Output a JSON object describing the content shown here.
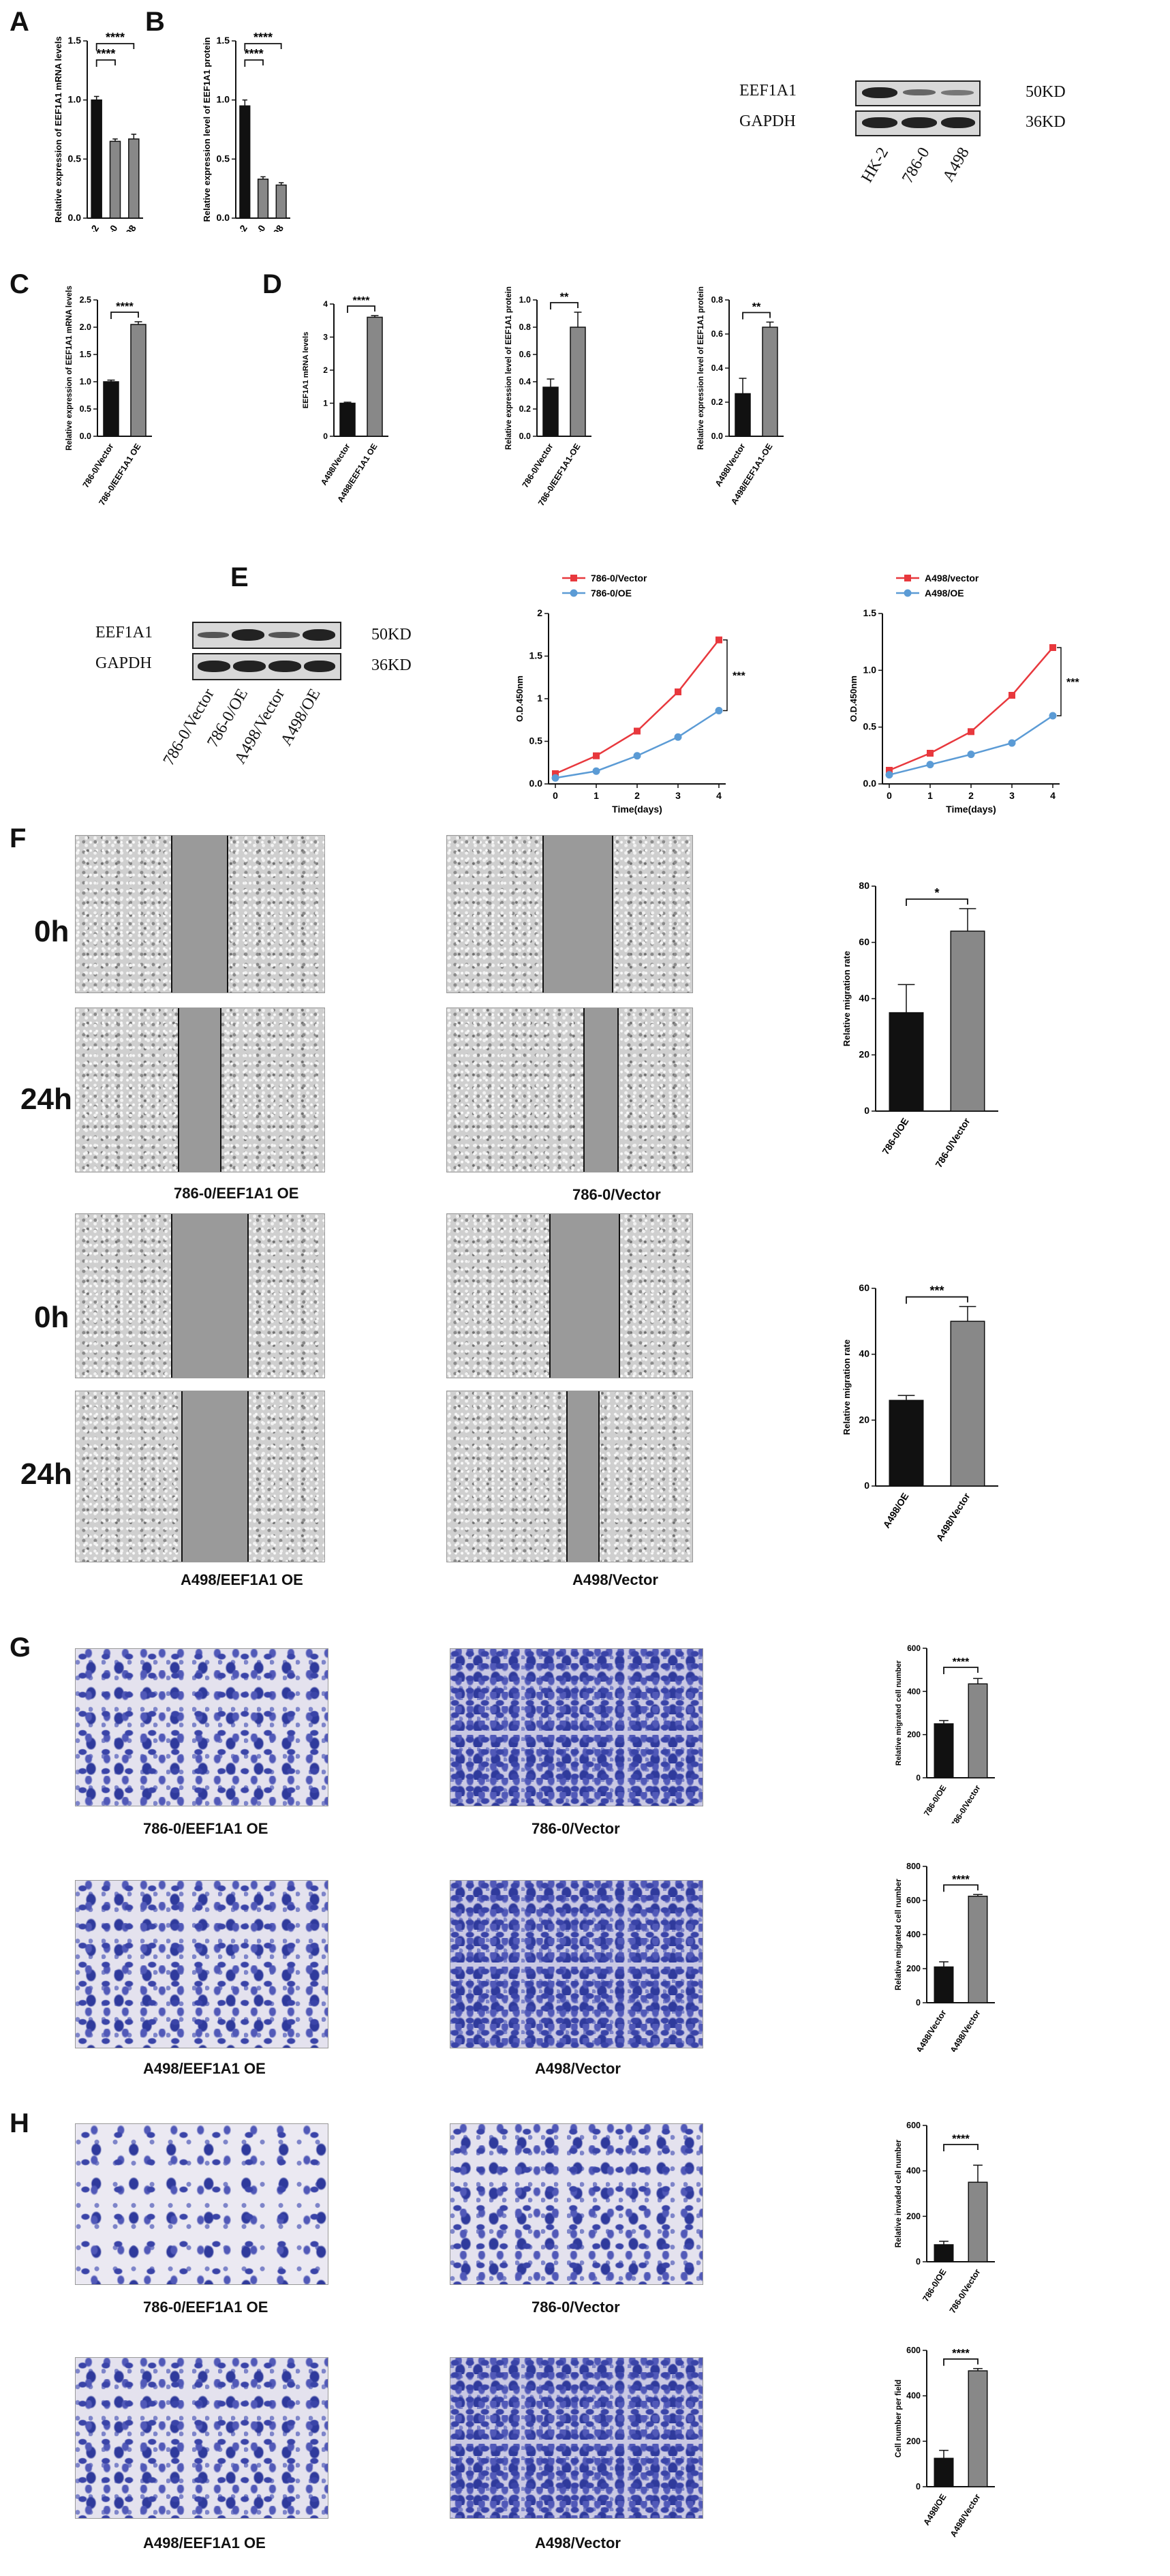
{
  "panels": {
    "A": "A",
    "B": "B",
    "C": "C",
    "D": "D",
    "E": "E",
    "F": "F",
    "G": "G",
    "H": "H"
  },
  "western_blot_top": {
    "bands": [
      "EEF1A1",
      "GAPDH"
    ],
    "sizes": [
      "50KD",
      "36KD"
    ],
    "lanes": [
      "HK-2",
      "786-0",
      "A498"
    ]
  },
  "western_blot_mid": {
    "bands": [
      "EEF1A1",
      "GAPDH"
    ],
    "sizes": [
      "50KD",
      "36KD"
    ],
    "lanes": [
      "786-0/Vector",
      "786-0/OE",
      "A498/Vector",
      "A498/OE"
    ]
  },
  "wound_healing": {
    "time_0": "0h",
    "time_24": "24h",
    "captions_786": [
      "786-0/EEF1A1 OE",
      "786-0/Vector"
    ],
    "captions_a498": [
      "A498/EEF1A1 OE",
      "A498/Vector"
    ]
  },
  "transwell_migration": {
    "captions_786": [
      "786-0/EEF1A1 OE",
      "786-0/Vector"
    ],
    "captions_a498": [
      "A498/EEF1A1 OE",
      "A498/Vector"
    ]
  },
  "transwell_invasion": {
    "captions_786": [
      "786-0/EEF1A1 OE",
      "786-0/Vector"
    ],
    "captions_a498": [
      "A498/EEF1A1 OE",
      "A498/Vector"
    ]
  },
  "chart_data": [
    {
      "id": "A1",
      "type": "bar",
      "categories": [
        "HK-2",
        "786-0",
        "A498"
      ],
      "values": [
        1.0,
        0.65,
        0.67
      ],
      "errors": [
        0.03,
        0.02,
        0.04
      ],
      "colors": [
        "#111111",
        "#888888",
        "#888888"
      ],
      "ylabel": "Relative expression of EEF1A1 mRNA levels",
      "ylim": [
        0,
        1.5
      ],
      "yticks": [
        0,
        0.5,
        1.0,
        1.5
      ],
      "tick_labels": [
        "0.0",
        "0.5",
        "1.0",
        "1.5"
      ],
      "sig": [
        {
          "from": 0,
          "to": 1,
          "label": "****",
          "level": 1
        },
        {
          "from": 0,
          "to": 2,
          "label": "****",
          "level": 2
        }
      ]
    },
    {
      "id": "B1",
      "type": "bar",
      "categories": [
        "HK-2",
        "786-0",
        "A498"
      ],
      "values": [
        0.95,
        0.33,
        0.28
      ],
      "errors": [
        0.05,
        0.02,
        0.02
      ],
      "colors": [
        "#111111",
        "#888888",
        "#888888"
      ],
      "ylabel": "Relative expression level of EEF1A1 protein",
      "ylim": [
        0,
        1.5
      ],
      "yticks": [
        0,
        0.5,
        1.0,
        1.5
      ],
      "tick_labels": [
        "0.0",
        "0.5",
        "1.0",
        "1.5"
      ],
      "sig": [
        {
          "from": 0,
          "to": 1,
          "label": "****",
          "level": 1
        },
        {
          "from": 0,
          "to": 2,
          "label": "****",
          "level": 2
        }
      ]
    },
    {
      "id": "C1",
      "type": "bar",
      "categories": [
        "786-0/Vector",
        "786-0/EEF1A1 OE"
      ],
      "values": [
        1.0,
        2.05
      ],
      "errors": [
        0.03,
        0.05
      ],
      "colors": [
        "#111111",
        "#888888"
      ],
      "ylabel": "Relative expression of EEF1A1 mRNA levels",
      "ylim": [
        0,
        2.5
      ],
      "yticks": [
        0,
        0.5,
        1.0,
        1.5,
        2.0,
        2.5
      ],
      "tick_labels": [
        "0.0",
        "0.5",
        "1.0",
        "1.5",
        "2.0",
        "2.5"
      ],
      "sig": [
        {
          "from": 0,
          "to": 1,
          "label": "****",
          "level": 1
        }
      ]
    },
    {
      "id": "C2",
      "type": "bar",
      "categories": [
        "A498/Vector",
        "A498/EEF1A1 OE"
      ],
      "values": [
        1.0,
        3.6
      ],
      "errors": [
        0.03,
        0.05
      ],
      "colors": [
        "#111111",
        "#888888"
      ],
      "ylabel": "EEF1A1 mRNA levels",
      "ylim": [
        0,
        4
      ],
      "yticks": [
        0,
        1,
        2,
        3,
        4
      ],
      "tick_labels": [
        "0",
        "1",
        "2",
        "3",
        "4"
      ],
      "sig": [
        {
          "from": 0,
          "to": 1,
          "label": "****",
          "level": 1
        }
      ]
    },
    {
      "id": "D1",
      "type": "bar",
      "categories": [
        "786-0/Vector",
        "786-0/EEF1A1-OE"
      ],
      "values": [
        0.36,
        0.8
      ],
      "errors": [
        0.06,
        0.11
      ],
      "colors": [
        "#111111",
        "#888888"
      ],
      "ylabel": "Relative expression level of EEF1A1 protein",
      "ylim": [
        0,
        1.0
      ],
      "yticks": [
        0,
        0.2,
        0.4,
        0.6,
        0.8,
        1.0
      ],
      "tick_labels": [
        "0.0",
        "0.2",
        "0.4",
        "0.6",
        "0.8",
        "1.0"
      ],
      "sig": [
        {
          "from": 0,
          "to": 1,
          "label": "**",
          "level": 1
        }
      ]
    },
    {
      "id": "D2",
      "type": "bar",
      "categories": [
        "A498/Vector",
        "A498/EEF1A1-OE"
      ],
      "values": [
        0.25,
        0.64
      ],
      "errors": [
        0.09,
        0.03
      ],
      "colors": [
        "#111111",
        "#888888"
      ],
      "ylabel": "Relative expression level of EEF1A1 protein",
      "ylim": [
        0,
        0.8
      ],
      "yticks": [
        0,
        0.2,
        0.4,
        0.6,
        0.8
      ],
      "tick_labels": [
        "0.0",
        "0.2",
        "0.4",
        "0.6",
        "0.8"
      ],
      "sig": [
        {
          "from": 0,
          "to": 1,
          "label": "**",
          "level": 1
        }
      ]
    },
    {
      "id": "E1",
      "type": "line",
      "x": [
        0,
        1,
        2,
        3,
        4
      ],
      "series": [
        {
          "name": "786-0/Vector",
          "values": [
            0.12,
            0.33,
            0.62,
            1.08,
            1.69
          ],
          "color": "#e8383d",
          "marker": "square"
        },
        {
          "name": "786-0/OE",
          "values": [
            0.07,
            0.15,
            0.33,
            0.55,
            0.86
          ],
          "color": "#5b9bd5",
          "marker": "circle"
        }
      ],
      "xlabel": "Time(days)",
      "ylabel": "O.D.450nm",
      "ylim": [
        0,
        2.0
      ],
      "yticks": [
        0,
        0.5,
        1.0,
        1.5,
        2.0
      ],
      "tick_labels": [
        "0.0",
        "0.5",
        "1",
        "1.5",
        "2"
      ],
      "sig_label": "***"
    },
    {
      "id": "E2",
      "type": "line",
      "x": [
        0,
        1,
        2,
        3,
        4
      ],
      "series": [
        {
          "name": "A498/vector",
          "values": [
            0.12,
            0.27,
            0.46,
            0.78,
            1.2
          ],
          "color": "#e8383d",
          "marker": "square"
        },
        {
          "name": "A498/OE",
          "values": [
            0.08,
            0.17,
            0.26,
            0.36,
            0.6
          ],
          "color": "#5b9bd5",
          "marker": "circle"
        }
      ],
      "xlabel": "Time(days)",
      "ylabel": "O.D.450nm",
      "ylim": [
        0,
        1.5
      ],
      "yticks": [
        0,
        0.5,
        1.0,
        1.5
      ],
      "tick_labels": [
        "0.0",
        "0.5",
        "1.0",
        "1.5"
      ],
      "sig_label": "***"
    },
    {
      "id": "F1",
      "type": "bar",
      "categories": [
        "786-0/OE",
        "786-0/Vector"
      ],
      "values": [
        35,
        64
      ],
      "errors": [
        10,
        8
      ],
      "colors": [
        "#111111",
        "#888888"
      ],
      "ylabel": "Relative migration rate",
      "ylim": [
        0,
        80
      ],
      "yticks": [
        0,
        20,
        40,
        60,
        80
      ],
      "tick_labels": [
        "0",
        "20",
        "40",
        "60",
        "80"
      ],
      "sig": [
        {
          "from": 0,
          "to": 1,
          "label": "*",
          "level": 1
        }
      ]
    },
    {
      "id": "F2",
      "type": "bar",
      "categories": [
        "A498/OE",
        "A498/Vector"
      ],
      "values": [
        26,
        50
      ],
      "errors": [
        1.5,
        4.5
      ],
      "colors": [
        "#111111",
        "#888888"
      ],
      "ylabel": "Relative migration rate",
      "ylim": [
        0,
        60
      ],
      "yticks": [
        0,
        20,
        40,
        60
      ],
      "tick_labels": [
        "0",
        "20",
        "40",
        "60"
      ],
      "sig": [
        {
          "from": 0,
          "to": 1,
          "label": "***",
          "level": 1
        }
      ]
    },
    {
      "id": "G1",
      "type": "bar",
      "categories": [
        "786-0/OE",
        "786-0/Vector"
      ],
      "values": [
        250,
        435
      ],
      "errors": [
        15,
        25
      ],
      "colors": [
        "#111111",
        "#888888"
      ],
      "ylabel": "Relative migrated cell number",
      "ylim": [
        0,
        600
      ],
      "yticks": [
        0,
        200,
        400,
        600
      ],
      "tick_labels": [
        "0",
        "200",
        "400",
        "600"
      ],
      "sig": [
        {
          "from": 0,
          "to": 1,
          "label": "****",
          "level": 1
        }
      ]
    },
    {
      "id": "G2",
      "type": "bar",
      "categories": [
        "A498/Vector",
        "A498/Vector"
      ],
      "values": [
        210,
        625
      ],
      "errors": [
        30,
        10
      ],
      "colors": [
        "#111111",
        "#888888"
      ],
      "ylabel": "Relative migrated cell number",
      "ylim": [
        0,
        800
      ],
      "yticks": [
        0,
        200,
        400,
        600,
        800
      ],
      "tick_labels": [
        "0",
        "200",
        "400",
        "600",
        "800"
      ],
      "sig": [
        {
          "from": 0,
          "to": 1,
          "label": "****",
          "level": 1
        }
      ]
    },
    {
      "id": "H1",
      "type": "bar",
      "categories": [
        "786-0/OE",
        "786-0/Vector"
      ],
      "values": [
        75,
        350
      ],
      "errors": [
        15,
        75
      ],
      "colors": [
        "#111111",
        "#888888"
      ],
      "ylabel": "Relative invaded cell number",
      "ylim": [
        0,
        600
      ],
      "yticks": [
        0,
        200,
        400,
        600
      ],
      "tick_labels": [
        "0",
        "200",
        "400",
        "600"
      ],
      "sig": [
        {
          "from": 0,
          "to": 1,
          "label": "****",
          "level": 1
        }
      ]
    },
    {
      "id": "H2",
      "type": "bar",
      "categories": [
        "A498/OE",
        "A498/Vector"
      ],
      "values": [
        125,
        510
      ],
      "errors": [
        35,
        10
      ],
      "colors": [
        "#111111",
        "#888888"
      ],
      "ylabel": "Cell number per field",
      "ylim": [
        0,
        600
      ],
      "yticks": [
        0,
        200,
        400,
        600
      ],
      "tick_labels": [
        "0",
        "200",
        "400",
        "600"
      ],
      "sig": [
        {
          "from": 0,
          "to": 1,
          "label": "****",
          "level": 1
        }
      ]
    }
  ]
}
